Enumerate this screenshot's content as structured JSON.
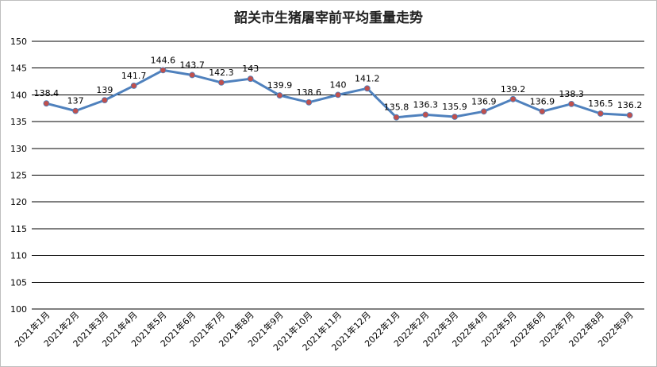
{
  "chart_data": {
    "type": "line",
    "title": "韶关市生猪屠宰前平均重量走势",
    "xlabel": "",
    "ylabel": "",
    "ylim": [
      100,
      150
    ],
    "yticks": [
      100,
      105,
      110,
      115,
      120,
      125,
      130,
      135,
      140,
      145,
      150
    ],
    "grid": true,
    "legend": "none",
    "categories": [
      "2021年1月",
      "2021年2月",
      "2021年3月",
      "2021年4月",
      "2021年5月",
      "2021年6月",
      "2021年7月",
      "2021年8月",
      "2021年9月",
      "2021年10月",
      "2021年11月",
      "2021年12月",
      "2022年1月",
      "2022年2月",
      "2022年3月",
      "2022年4月",
      "2022年5月",
      "2022年6月",
      "2022年7月",
      "2022年8月",
      "2022年9月"
    ],
    "values": [
      138.4,
      137,
      139,
      141.7,
      144.6,
      143.7,
      142.3,
      143,
      139.9,
      138.6,
      140,
      141.2,
      135.8,
      136.3,
      135.9,
      136.9,
      139.2,
      136.9,
      138.3,
      136.5,
      136.2
    ],
    "data_labels": [
      "138.4",
      "137",
      "139",
      "141.7",
      "144.6",
      "143.7",
      "142.3",
      "143",
      "139.9",
      "138.6",
      "140",
      "141.2",
      "135.8",
      "136.3",
      "135.9",
      "136.9",
      "139.2",
      "136.9",
      "138.3",
      "136.5",
      "136.2"
    ],
    "colors": {
      "line": "#4f81bd",
      "marker": "#c0504d",
      "grid": "#000000",
      "text": "#000000"
    }
  }
}
